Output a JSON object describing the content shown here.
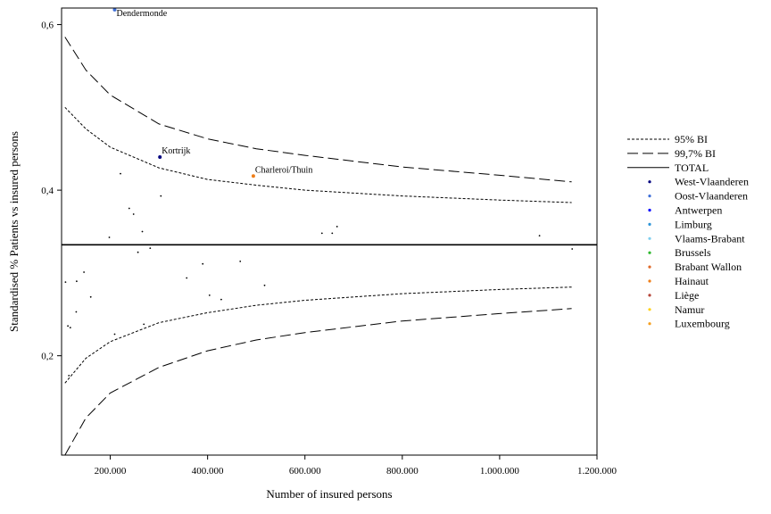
{
  "chart_data": {
    "type": "scatter",
    "title": "",
    "xlabel": "Number of insured persons",
    "ylabel": "Standardised % Patients vs insured persons",
    "xlim": [
      100000,
      1200000
    ],
    "ylim": [
      0.08,
      0.62
    ],
    "grid": false,
    "legend_position": "right",
    "x_ticks": [
      {
        "value": 200000,
        "label": "200.000"
      },
      {
        "value": 400000,
        "label": "400.000"
      },
      {
        "value": 600000,
        "label": "600.000"
      },
      {
        "value": 800000,
        "label": "800.000"
      },
      {
        "value": 1000000,
        "label": "1.000.000"
      },
      {
        "value": 1200000,
        "label": "1.200.000"
      }
    ],
    "y_ticks": [
      {
        "value": 0.2,
        "label": "0,2"
      },
      {
        "value": 0.4,
        "label": "0,4"
      },
      {
        "value": 0.6,
        "label": "0,6"
      }
    ],
    "total": 0.334,
    "lines": [
      {
        "name": "95% BI",
        "style": "dotted",
        "upper": [
          [
            107000,
            0.5
          ],
          [
            150000,
            0.474
          ],
          [
            200000,
            0.452
          ],
          [
            300000,
            0.427
          ],
          [
            400000,
            0.413
          ],
          [
            500000,
            0.406
          ],
          [
            600000,
            0.4
          ],
          [
            800000,
            0.393
          ],
          [
            1000000,
            0.388
          ],
          [
            1148000,
            0.385
          ]
        ],
        "lower": [
          [
            107000,
            0.167
          ],
          [
            150000,
            0.197
          ],
          [
            200000,
            0.217
          ],
          [
            300000,
            0.24
          ],
          [
            400000,
            0.252
          ],
          [
            500000,
            0.261
          ],
          [
            600000,
            0.267
          ],
          [
            800000,
            0.275
          ],
          [
            1000000,
            0.28
          ],
          [
            1148000,
            0.283
          ]
        ]
      },
      {
        "name": "99,7% BI",
        "style": "dashed",
        "upper": [
          [
            107000,
            0.585
          ],
          [
            150000,
            0.545
          ],
          [
            200000,
            0.515
          ],
          [
            300000,
            0.48
          ],
          [
            400000,
            0.462
          ],
          [
            500000,
            0.45
          ],
          [
            600000,
            0.442
          ],
          [
            800000,
            0.428
          ],
          [
            1000000,
            0.418
          ],
          [
            1148000,
            0.41
          ]
        ],
        "lower": [
          [
            107000,
            0.08
          ],
          [
            150000,
            0.125
          ],
          [
            200000,
            0.155
          ],
          [
            300000,
            0.186
          ],
          [
            400000,
            0.206
          ],
          [
            500000,
            0.219
          ],
          [
            600000,
            0.228
          ],
          [
            800000,
            0.242
          ],
          [
            1000000,
            0.251
          ],
          [
            1148000,
            0.257
          ]
        ]
      }
    ],
    "legend": [
      {
        "label": "95% BI",
        "kind": "dotted",
        "color": "#000000"
      },
      {
        "label": "99,7% BI",
        "kind": "dashed",
        "color": "#000000"
      },
      {
        "label": "TOTAL",
        "kind": "solid",
        "color": "#000000"
      },
      {
        "label": "West-Vlaanderen",
        "kind": "dot",
        "color": "#00007f"
      },
      {
        "label": "Oost-Vlaanderen",
        "kind": "dot",
        "color": "#3f6fd8"
      },
      {
        "label": "Antwerpen",
        "kind": "dot",
        "color": "#0000ff"
      },
      {
        "label": "Limburg",
        "kind": "dot",
        "color": "#2e95d8"
      },
      {
        "label": "Vlaams-Brabant",
        "kind": "dot",
        "color": "#7fcfef"
      },
      {
        "label": "Brussels",
        "kind": "dot",
        "color": "#2eb82e"
      },
      {
        "label": "Brabant Wallon",
        "kind": "dot",
        "color": "#e06a2a"
      },
      {
        "label": "Hainaut",
        "kind": "dot",
        "color": "#ef7f1a"
      },
      {
        "label": "Liège",
        "kind": "dot",
        "color": "#b5463a"
      },
      {
        "label": "Namur",
        "kind": "dot",
        "color": "#ffd21a"
      },
      {
        "label": "Luxembourg",
        "kind": "dot",
        "color": "#f5a020"
      }
    ],
    "highlighted_points": [
      {
        "label": "Dendermonde",
        "x": 209000,
        "y": 0.618,
        "color": "#3f6fd8"
      },
      {
        "label": "Kortrijk",
        "x": 302000,
        "y": 0.44,
        "color": "#00007f"
      },
      {
        "label": "Charleroi/Thuin",
        "x": 494000,
        "y": 0.417,
        "color": "#ef7f1a"
      }
    ],
    "points": [
      [
        221000,
        0.42
      ],
      [
        239000,
        0.378
      ],
      [
        248000,
        0.371
      ],
      [
        266000,
        0.35
      ],
      [
        304000,
        0.393
      ],
      [
        198000,
        0.343
      ],
      [
        282000,
        0.33
      ],
      [
        257000,
        0.325
      ],
      [
        108000,
        0.289
      ],
      [
        131000,
        0.29
      ],
      [
        146000,
        0.301
      ],
      [
        160000,
        0.271
      ],
      [
        130000,
        0.253
      ],
      [
        113000,
        0.236
      ],
      [
        118000,
        0.234
      ],
      [
        115000,
        0.176
      ],
      [
        209000,
        0.226
      ],
      [
        269000,
        0.238
      ],
      [
        357000,
        0.294
      ],
      [
        390000,
        0.311
      ],
      [
        404000,
        0.273
      ],
      [
        428000,
        0.268
      ],
      [
        467000,
        0.314
      ],
      [
        517000,
        0.285
      ],
      [
        635000,
        0.348
      ],
      [
        656000,
        0.348
      ],
      [
        666000,
        0.356
      ],
      [
        1082000,
        0.345
      ],
      [
        1149000,
        0.329
      ]
    ]
  }
}
